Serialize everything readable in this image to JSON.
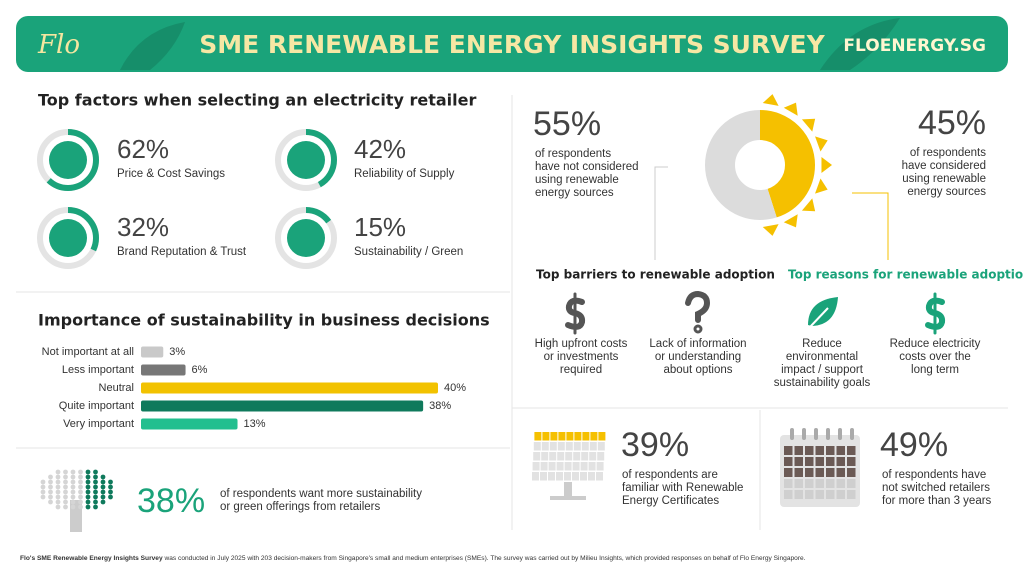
{
  "header": {
    "logo": "Flo",
    "title": "SME RENEWABLE ENERGY INSIGHTS SURVEY",
    "site": "FLOENERGY.SG"
  },
  "factors": {
    "title": "Top factors when selecting an electricity retailer",
    "items": [
      {
        "value": 62,
        "label": "62%",
        "text": "Price & Cost Savings"
      },
      {
        "value": 42,
        "label": "42%",
        "text": "Reliability of Supply"
      },
      {
        "value": 32,
        "label": "32%",
        "text": "Brand Reputation & Trust"
      },
      {
        "value": 15,
        "label": "15%",
        "text": "Sustainability / Green"
      }
    ]
  },
  "importance": {
    "title": "Importance of sustainability in business decisions",
    "type": "bar",
    "orientation": "horizontal",
    "categories": [
      "Not important at all",
      "Less important",
      "Neutral",
      "Quite important",
      "Very important"
    ],
    "values": [
      3,
      6,
      40,
      38,
      13
    ],
    "value_labels": [
      "3%",
      "6%",
      "40%",
      "38%",
      "13%"
    ],
    "colors": [
      "#c9c9c9",
      "#777777",
      "#f2c200",
      "#0f7a5c",
      "#22bf8f"
    ],
    "xlim": [
      0,
      40
    ]
  },
  "more_offerings": {
    "value": 38,
    "label": "38%",
    "lines": [
      "of respondents want more sustainability",
      "or green offerings from retailers"
    ]
  },
  "adoption": {
    "not_considered": {
      "value": 55,
      "label": "55%",
      "lines": [
        "of respondents",
        "have not considered",
        "using renewable",
        "energy sources"
      ],
      "color": "#dcdcdc"
    },
    "considered": {
      "value": 45,
      "label": "45%",
      "lines": [
        "of respondents",
        "have considered",
        "using renewable",
        "energy sources"
      ],
      "color": "#f5c000"
    }
  },
  "barriers": {
    "title": "Top barriers to renewable adoption",
    "items": [
      [
        "High upfront costs",
        "or investments",
        "required"
      ],
      [
        "Lack of information",
        "or understanding",
        "about options"
      ]
    ]
  },
  "reasons": {
    "title": "Top reasons for renewable adoption",
    "items": [
      [
        "Reduce",
        "environmental",
        "impact / support",
        "sustainability goals"
      ],
      [
        "Reduce electricity",
        "costs over the",
        "long term"
      ]
    ]
  },
  "certificates": {
    "value": 39,
    "label": "39%",
    "lines": [
      "of respondents are",
      "familiar with Renewable",
      "Energy Certificates"
    ]
  },
  "switching": {
    "value": 49,
    "label": "49%",
    "lines": [
      "of respondents have",
      "not switched retailers",
      "for more than 3 years"
    ]
  },
  "footnote": {
    "bold": "Flo's SME Renewable Energy Insights Survey",
    "text": " was conducted in July 2025 with 203 decision-makers from Singapore's small and medium enterprises (SMEs). The survey was carried out by Milieu Insights, which provided responses on behalf of Flo Energy Singapore."
  }
}
